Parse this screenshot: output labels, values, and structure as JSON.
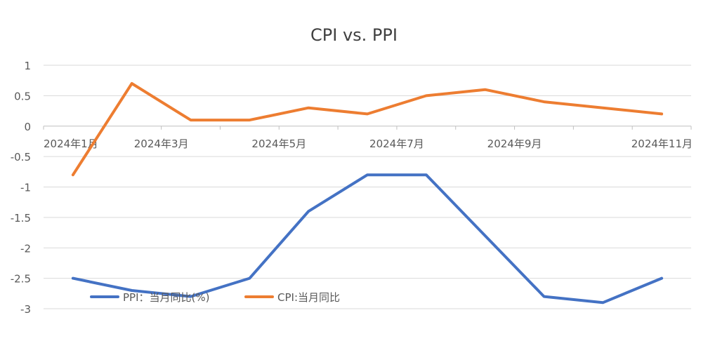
{
  "chart_data": {
    "type": "line",
    "title": "CPI vs. PPI",
    "xlabel": "",
    "ylabel": "",
    "categories": [
      "2024年1月",
      "2024年2月",
      "2024年3月",
      "2024年4月",
      "2024年5月",
      "2024年6月",
      "2024年7月",
      "2024年8月",
      "2024年9月",
      "2024年10月",
      "2024年11月"
    ],
    "x_tick_labels_shown": [
      "2024年1月",
      "2024年3月",
      "2024年5月",
      "2024年7月",
      "2024年9月",
      "2024年11月"
    ],
    "ylim": [
      -3,
      1
    ],
    "yticks": [
      1,
      0.5,
      0,
      -0.5,
      -1,
      -1.5,
      -2,
      -2.5,
      -3
    ],
    "ytick_labels": [
      "1",
      "0.5",
      "0",
      "-0.5",
      "-1",
      "-1.5",
      "-2",
      "-2.5",
      "-3"
    ],
    "grid": true,
    "legend_position": "bottom-left",
    "series": [
      {
        "name": "PPI：当月同比(%)",
        "color": "#4472c4",
        "values": [
          -2.5,
          -2.7,
          -2.8,
          -2.5,
          -1.4,
          -0.8,
          -0.8,
          -1.8,
          -2.8,
          -2.9,
          -2.5
        ]
      },
      {
        "name": "CPI:当月同比",
        "color": "#ed7d31",
        "values": [
          -0.8,
          0.7,
          0.1,
          0.1,
          0.3,
          0.2,
          0.5,
          0.6,
          0.4,
          0.3,
          0.2
        ]
      }
    ]
  }
}
